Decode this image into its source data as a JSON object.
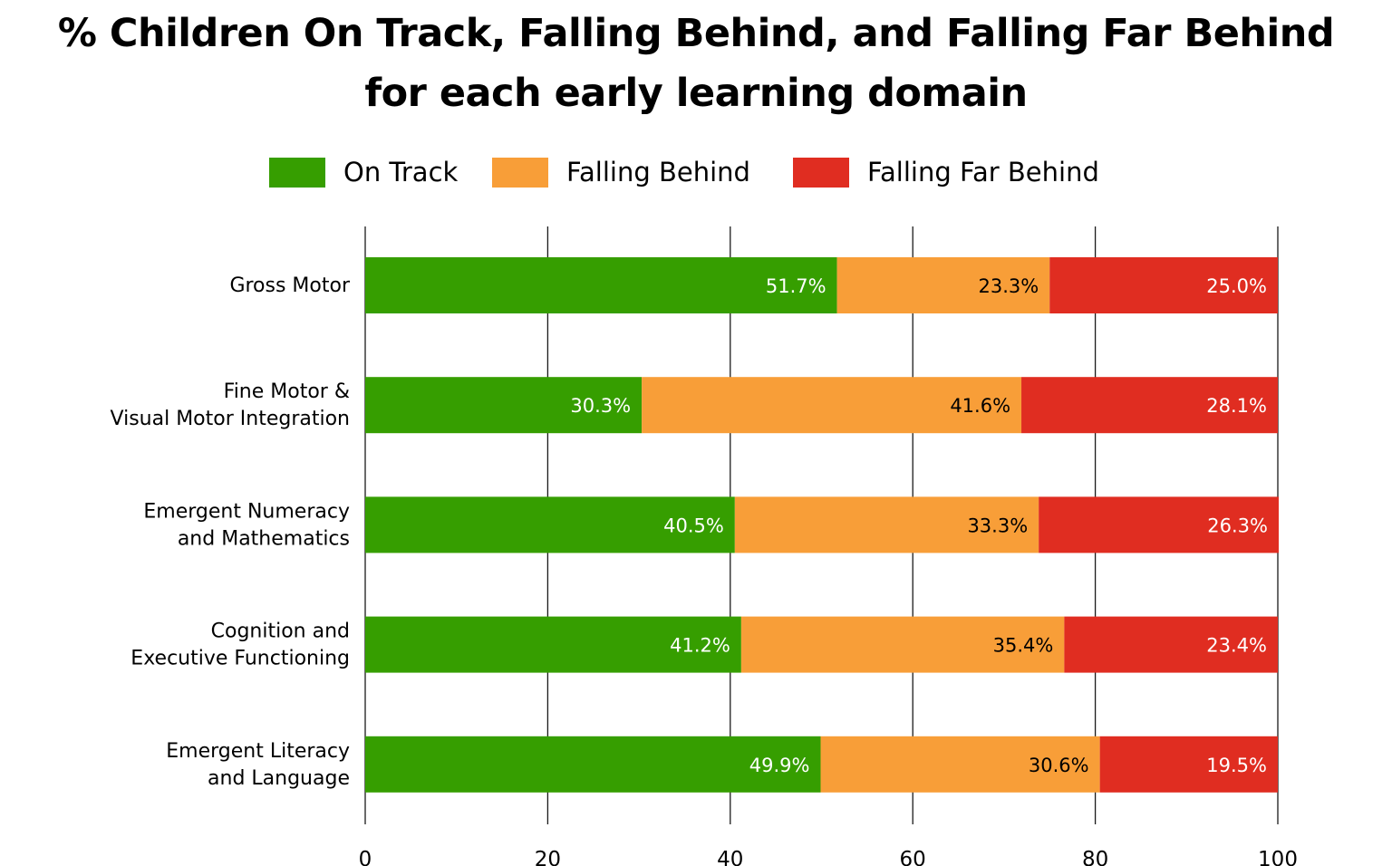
{
  "chart_data": {
    "type": "bar",
    "orientation": "horizontal",
    "stacked": true,
    "title": "% Children On Track, Falling Behind, and Falling Far Behind for each early learning domain",
    "title_lines": [
      "% Children On Track, Falling Behind, and Falling Far Behind",
      "for each early learning domain"
    ],
    "categories": [
      "Gross Motor",
      "Fine Motor & Visual Motor Integration",
      "Emergent Numeracy and Mathematics",
      "Cognition and Executive Functioning",
      "Emergent Literacy and Language"
    ],
    "category_label_lines": [
      [
        "Gross Motor"
      ],
      [
        "Fine Motor &",
        "Visual Motor Integration"
      ],
      [
        "Emergent Numeracy",
        "and Mathematics"
      ],
      [
        "Cognition and",
        "Executive Functioning"
      ],
      [
        "Emergent Literacy",
        "and Language"
      ]
    ],
    "series": [
      {
        "name": "On Track",
        "color": "#369e00",
        "label_color": "#ffffff",
        "values": [
          51.7,
          30.3,
          40.5,
          41.2,
          49.9
        ]
      },
      {
        "name": "Falling Behind",
        "color": "#f89e38",
        "label_color": "#000000",
        "values": [
          23.3,
          41.6,
          33.3,
          35.4,
          30.6
        ]
      },
      {
        "name": "Falling Far Behind",
        "color": "#e02d21",
        "label_color": "#ffffff",
        "values": [
          25.0,
          28.1,
          26.3,
          23.4,
          19.5
        ]
      }
    ],
    "value_suffix": "%",
    "xlim": [
      0,
      100
    ],
    "x_ticks": [
      0,
      20,
      40,
      60,
      80,
      100
    ],
    "xlabel": "",
    "ylabel": "",
    "grid": "vertical",
    "legend_position": "top"
  }
}
